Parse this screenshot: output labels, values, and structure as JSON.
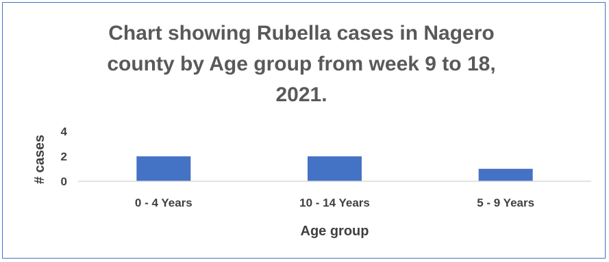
{
  "chart_data": {
    "type": "bar",
    "title": "Chart showing Rubella cases in Nagero county by Age group from week 9 to 18, 2021.",
    "categories": [
      "0 - 4 Years",
      "10 - 14 Years",
      "5 - 9 Years"
    ],
    "values": [
      2,
      2,
      1
    ],
    "xlabel": "Age group",
    "ylabel": "# cases",
    "ylim": [
      0,
      4
    ],
    "yticks": [
      "0",
      "2",
      "4"
    ],
    "grid": false,
    "legend": "none",
    "bar_color": "#4472c4",
    "axis_color": "#d9d9d9"
  }
}
